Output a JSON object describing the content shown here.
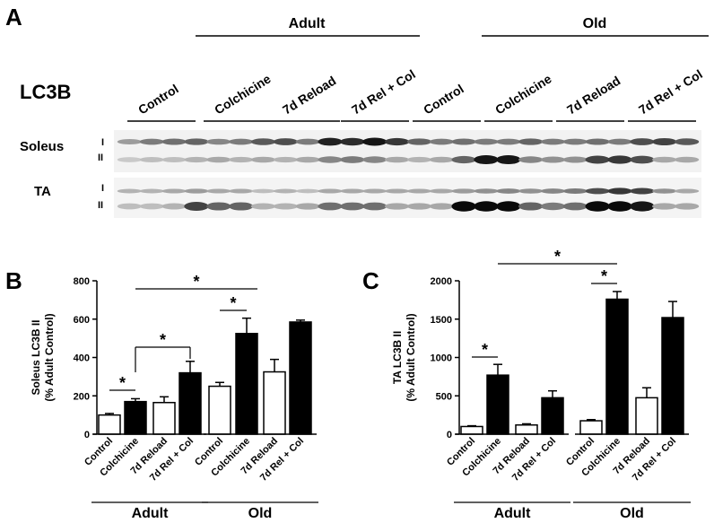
{
  "panel_labels": {
    "a": "A",
    "b": "B",
    "c": "C"
  },
  "blot": {
    "target": "LC3B",
    "group_labels": [
      "Adult",
      "Old"
    ],
    "lanes": [
      "Control",
      "Colchicine",
      "7d Reload",
      "7d Rel + Col",
      "Control",
      "Colchicine",
      "7d Reload",
      "7d Rel + Col"
    ],
    "rows": [
      {
        "tissue": "Soleus",
        "band_upper": "I",
        "band_lower": "II"
      },
      {
        "tissue": "TA",
        "band_upper": "I",
        "band_lower": "II"
      }
    ]
  },
  "chart_data": [
    {
      "type": "bar",
      "panel": "B",
      "ylabel_line1": "Soleus LC3B II",
      "ylabel_line2": "(% Adult Control)",
      "ylim": [
        0,
        800
      ],
      "yticks": [
        "0",
        "200",
        "400",
        "600",
        "800"
      ],
      "categories": [
        "Control",
        "Colchicine",
        "7d Reload",
        "7d Rel + Col",
        "Control",
        "Colchicine",
        "7d Reload",
        "7d Rel + Col"
      ],
      "groups": [
        {
          "label": "Adult",
          "from": 0,
          "to": 3
        },
        {
          "label": "Old",
          "from": 4,
          "to": 7
        }
      ],
      "values": [
        100,
        170,
        165,
        320,
        250,
        525,
        325,
        585
      ],
      "errors": [
        8,
        15,
        30,
        60,
        20,
        80,
        65,
        10
      ],
      "fill": [
        "#ffffff",
        "#000000",
        "#ffffff",
        "#000000",
        "#ffffff",
        "#000000",
        "#ffffff",
        "#000000"
      ],
      "significance": [
        {
          "from": 0,
          "to": 1,
          "label": "*"
        },
        {
          "from": 1,
          "to": 3,
          "label": "*"
        },
        {
          "from": 4,
          "to": 5,
          "label": "*"
        },
        {
          "from": 1,
          "to": 5,
          "label": "*"
        }
      ]
    },
    {
      "type": "bar",
      "panel": "C",
      "ylabel_line1": "TA LC3B II",
      "ylabel_line2": "(% Adult Control)",
      "ylim": [
        0,
        2000
      ],
      "yticks": [
        "0",
        "500",
        "1000",
        "1500",
        "2000"
      ],
      "categories": [
        "Control",
        "Colchicine",
        "7d Reload",
        "7d Rel + Col",
        "Control",
        "Colchicine",
        "7d Reload",
        "7d Rel + Col"
      ],
      "groups": [
        {
          "label": "Adult",
          "from": 0,
          "to": 3
        },
        {
          "label": "Old",
          "from": 4,
          "to": 7
        }
      ],
      "values": [
        100,
        770,
        120,
        475,
        175,
        1760,
        475,
        1520
      ],
      "errors": [
        10,
        140,
        15,
        90,
        15,
        100,
        130,
        210
      ],
      "fill": [
        "#ffffff",
        "#000000",
        "#ffffff",
        "#000000",
        "#ffffff",
        "#000000",
        "#ffffff",
        "#000000"
      ],
      "significance": [
        {
          "from": 0,
          "to": 1,
          "label": "*"
        },
        {
          "from": 4,
          "to": 5,
          "label": "*"
        },
        {
          "from": 1,
          "to": 5,
          "label": "*"
        }
      ]
    }
  ]
}
